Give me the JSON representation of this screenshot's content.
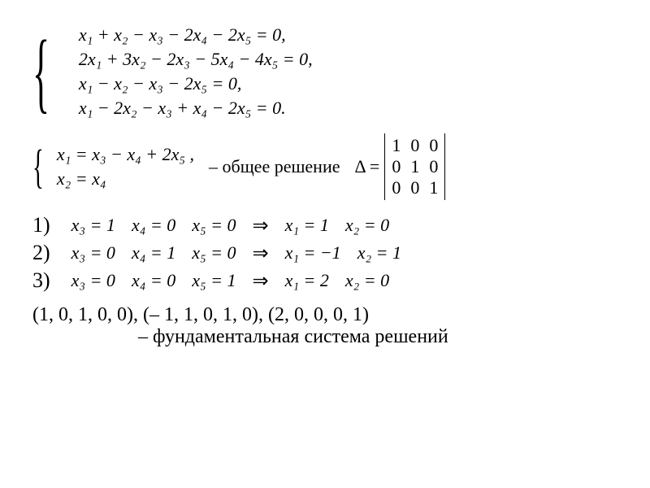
{
  "system": {
    "eq1": "x₁  +  x₂  −  x₃  − 2x₄  − 2x₅  = 0,",
    "eq2": "2x₁ + 3x₂ − 2x₃ − 5x₄ − 4x₅ = 0,",
    "eq3": "x₁  −  x₂  −  x₃        −       2x₅  = 0,",
    "eq4": "x₁  − 2x₂ −  x₃  +  x₄  − 2x₅  = 0."
  },
  "general": {
    "line1": "x₁ = x₃ − x₄ + 2x₅ ,",
    "line2": "x₂ =        x₄",
    "label": "– общее решение"
  },
  "determinant": {
    "prefix": "Δ =",
    "rows": [
      [
        "1",
        "0",
        "0"
      ],
      [
        "0",
        "1",
        "0"
      ],
      [
        "0",
        "0",
        "1"
      ]
    ]
  },
  "cases": [
    {
      "n": "1)",
      "a": "x₃ = 1",
      "b": "x₄ = 0",
      "c": "x₅ = 0",
      "r1": "x₁ = 1",
      "r2": "x₂ = 0"
    },
    {
      "n": "2)",
      "a": "x₃ = 0",
      "b": "x₄ = 1",
      "c": "x₅ = 0",
      "r1": "x₁ = −1",
      "r2": "x₂ = 1"
    },
    {
      "n": "3)",
      "a": "x₃ = 0",
      "b": "x₄ = 0",
      "c": "x₅ = 1",
      "r1": "x₁ = 2",
      "r2": "x₂ = 0"
    }
  ],
  "arrow": "⇒",
  "vectors": "(1, 0, 1, 0, 0),  (– 1, 1, 0, 1, 0),  (2, 0, 0, 0, 1)",
  "fundamental": "– фундаментальная система решений",
  "colors": {
    "text": "#000000",
    "bg": "#ffffff"
  }
}
